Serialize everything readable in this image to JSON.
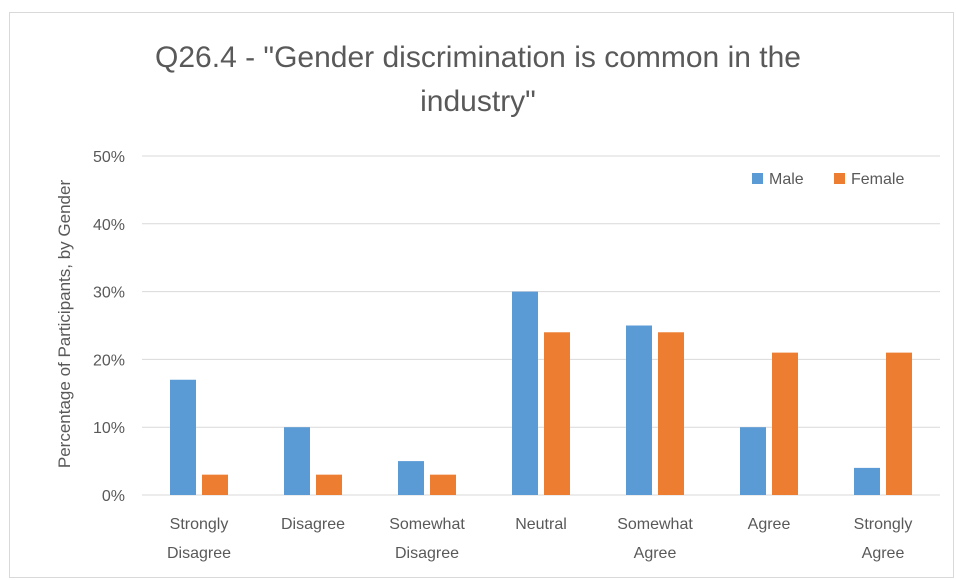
{
  "chart_data": {
    "type": "bar",
    "title_lines": [
      "Q26.4 - \"Gender discrimination is common in the",
      "industry\""
    ],
    "ylabel": "Percentage of Participants, by Gender",
    "xlabel": "",
    "ylim": [
      0,
      50
    ],
    "yticks": [
      "0%",
      "10%",
      "20%",
      "30%",
      "40%",
      "50%"
    ],
    "ytick_values": [
      0,
      10,
      20,
      30,
      40,
      50
    ],
    "categories": [
      [
        "Strongly",
        "Disagree"
      ],
      [
        "Disagree"
      ],
      [
        "Somewhat",
        "Disagree"
      ],
      [
        "Neutral"
      ],
      [
        "Somewhat",
        "Agree"
      ],
      [
        "Agree"
      ],
      [
        "Strongly",
        "Agree"
      ]
    ],
    "series": [
      {
        "name": "Male",
        "color": "#5b9bd5",
        "values": [
          17,
          10,
          5,
          30,
          25,
          10,
          4
        ]
      },
      {
        "name": "Female",
        "color": "#ed7d31",
        "values": [
          3,
          3,
          3,
          24,
          24,
          21,
          21
        ]
      }
    ],
    "grid": true,
    "legend_position": "top-right"
  }
}
